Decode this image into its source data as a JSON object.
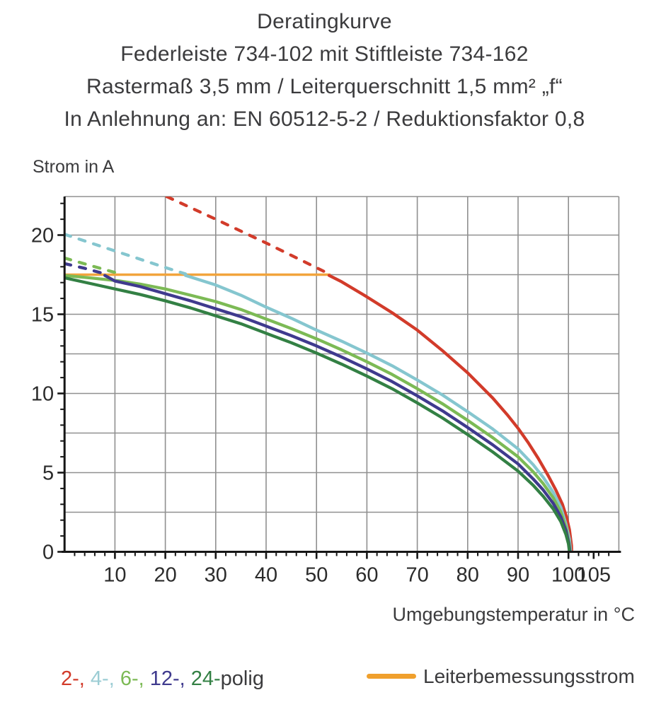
{
  "title": {
    "line1": "Deratingkurve",
    "line2": "Federleiste 734-102 mit Stiftleiste 734-162",
    "line3": "Rastermaß 3,5 mm / Leiterquerschnitt 1,5 mm² „f“",
    "line4": "In Anlehnung an: EN 60512-5-2 / Reduktionsfaktor 0,8"
  },
  "y_axis_label": "Strom in A",
  "x_axis_label": "Umgebungstemperatur in °C",
  "legend": {
    "series_parts": [
      {
        "text": "2-, ",
        "color": "#d23b2a"
      },
      {
        "text": "4-, ",
        "color": "#9ccdd4"
      },
      {
        "text": "6-, ",
        "color": "#7cba55"
      },
      {
        "text": "12-, ",
        "color": "#3f3a8e"
      },
      {
        "text": "24-",
        "color": "#338044"
      },
      {
        "text": "polig",
        "color": "#3b3b3d"
      }
    ],
    "reference_label": "Leiterbemessungsstrom",
    "reference_color": "#f0a02d"
  },
  "chart_data": {
    "type": "line",
    "title": "Deratingkurve",
    "xlabel": "Umgebungstemperatur in °C",
    "ylabel": "Strom in A",
    "xlim": [
      0,
      110
    ],
    "ylim": [
      0,
      22.43
    ],
    "grid": true,
    "grid_x_step": 10,
    "grid_y_step": 2.5,
    "x_major_ticks": [
      10,
      20,
      30,
      40,
      50,
      60,
      70,
      80,
      90,
      100,
      105
    ],
    "x_minor_step": 2,
    "y_major_ticks": [
      0,
      5,
      10,
      15,
      20
    ],
    "y_minor_step": 1,
    "reference_line": {
      "name": "Leiterbemessungsstrom",
      "color": "#f2a43c",
      "y": 17.5,
      "x_range": [
        0,
        52.8
      ]
    },
    "series": [
      {
        "name": "2-polig",
        "color": "#d23b2a",
        "dashed_points": [
          [
            20.3,
            22.43
          ],
          [
            30,
            21.0
          ],
          [
            40,
            19.5
          ],
          [
            52.5,
            17.55
          ]
        ],
        "solid_points": [
          [
            52.5,
            17.45
          ],
          [
            55,
            17.05
          ],
          [
            60,
            16.1
          ],
          [
            65,
            15.1
          ],
          [
            70,
            14.0
          ],
          [
            75,
            12.7
          ],
          [
            80,
            11.3
          ],
          [
            85,
            9.7
          ],
          [
            88,
            8.6
          ],
          [
            90,
            7.8
          ],
          [
            92,
            6.9
          ],
          [
            94,
            5.9
          ],
          [
            96,
            4.8
          ],
          [
            97.5,
            3.9
          ],
          [
            98.8,
            3.0
          ],
          [
            99.6,
            2.2
          ],
          [
            100.2,
            1.4
          ],
          [
            100.6,
            0.4
          ],
          [
            100.65,
            0
          ]
        ]
      },
      {
        "name": "4-polig",
        "color": "#85c6cf",
        "dashed_points": [
          [
            0,
            20.05
          ],
          [
            10,
            19.0
          ],
          [
            20,
            17.95
          ],
          [
            24,
            17.55
          ]
        ],
        "solid_points": [
          [
            24,
            17.45
          ],
          [
            30,
            16.85
          ],
          [
            35,
            16.2
          ],
          [
            40,
            15.45
          ],
          [
            45,
            14.75
          ],
          [
            50,
            14.0
          ],
          [
            55,
            13.3
          ],
          [
            60,
            12.55
          ],
          [
            65,
            11.75
          ],
          [
            70,
            10.85
          ],
          [
            75,
            9.9
          ],
          [
            80,
            8.85
          ],
          [
            85,
            7.75
          ],
          [
            90,
            6.5
          ],
          [
            93,
            5.5
          ],
          [
            95,
            4.7
          ],
          [
            97,
            3.75
          ],
          [
            98.5,
            2.8
          ],
          [
            99.5,
            1.75
          ],
          [
            100.2,
            0.8
          ],
          [
            100.45,
            0
          ]
        ]
      },
      {
        "name": "6-polig",
        "color": "#7cba55",
        "dashed_points": [
          [
            0,
            18.55
          ],
          [
            6,
            18.0
          ],
          [
            11,
            17.55
          ]
        ],
        "solid_points": [
          [
            0,
            17.45
          ],
          [
            5,
            17.3
          ],
          [
            11,
            17.1
          ],
          [
            15,
            16.9
          ],
          [
            20,
            16.6
          ],
          [
            25,
            16.2
          ],
          [
            30,
            15.8
          ],
          [
            35,
            15.3
          ],
          [
            40,
            14.7
          ],
          [
            45,
            14.1
          ],
          [
            50,
            13.45
          ],
          [
            55,
            12.75
          ],
          [
            60,
            12.0
          ],
          [
            65,
            11.2
          ],
          [
            70,
            10.3
          ],
          [
            75,
            9.35
          ],
          [
            80,
            8.3
          ],
          [
            85,
            7.2
          ],
          [
            90,
            6.0
          ],
          [
            93,
            5.05
          ],
          [
            95,
            4.3
          ],
          [
            97,
            3.4
          ],
          [
            98.5,
            2.5
          ],
          [
            99.5,
            1.55
          ],
          [
            100.1,
            0.6
          ],
          [
            100.35,
            0
          ]
        ]
      },
      {
        "name": "12-polig",
        "color": "#3f3a8e",
        "dashed_points": [
          [
            0,
            18.2
          ],
          [
            4,
            17.9
          ],
          [
            8,
            17.55
          ]
        ],
        "solid_points": [
          [
            8,
            17.45
          ],
          [
            10,
            17.1
          ],
          [
            15,
            16.75
          ],
          [
            20,
            16.3
          ],
          [
            25,
            15.85
          ],
          [
            30,
            15.35
          ],
          [
            35,
            14.85
          ],
          [
            40,
            14.25
          ],
          [
            45,
            13.65
          ],
          [
            50,
            13.0
          ],
          [
            55,
            12.3
          ],
          [
            60,
            11.55
          ],
          [
            65,
            10.75
          ],
          [
            70,
            9.85
          ],
          [
            75,
            8.9
          ],
          [
            80,
            7.85
          ],
          [
            85,
            6.75
          ],
          [
            90,
            5.55
          ],
          [
            93,
            4.6
          ],
          [
            95,
            3.9
          ],
          [
            97,
            3.05
          ],
          [
            98.5,
            2.2
          ],
          [
            99.5,
            1.35
          ],
          [
            100.05,
            0.55
          ],
          [
            100.3,
            0
          ]
        ]
      },
      {
        "name": "24-polig",
        "color": "#338044",
        "dashed_points": [],
        "solid_points": [
          [
            0,
            17.3
          ],
          [
            5,
            16.95
          ],
          [
            10,
            16.6
          ],
          [
            15,
            16.25
          ],
          [
            20,
            15.85
          ],
          [
            25,
            15.4
          ],
          [
            30,
            14.9
          ],
          [
            35,
            14.4
          ],
          [
            40,
            13.8
          ],
          [
            45,
            13.2
          ],
          [
            50,
            12.55
          ],
          [
            55,
            11.85
          ],
          [
            60,
            11.1
          ],
          [
            65,
            10.3
          ],
          [
            70,
            9.4
          ],
          [
            75,
            8.45
          ],
          [
            80,
            7.4
          ],
          [
            85,
            6.3
          ],
          [
            90,
            5.1
          ],
          [
            93,
            4.2
          ],
          [
            95,
            3.5
          ],
          [
            97,
            2.7
          ],
          [
            98.5,
            1.9
          ],
          [
            99.5,
            1.1
          ],
          [
            100,
            0.5
          ],
          [
            100.2,
            0
          ]
        ]
      }
    ]
  }
}
